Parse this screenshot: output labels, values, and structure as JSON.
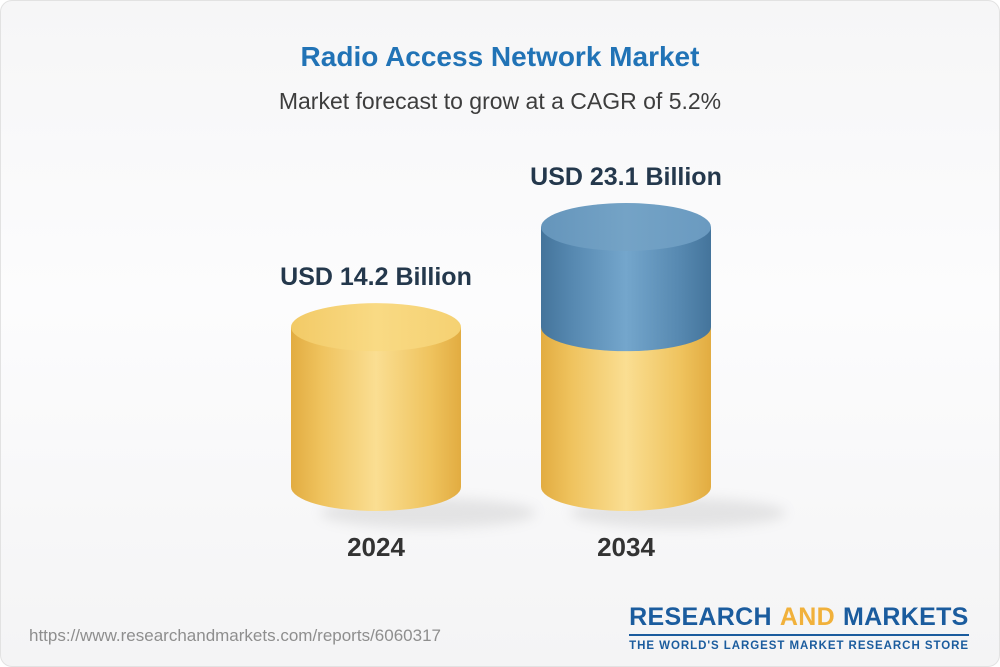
{
  "header": {
    "title": "Radio Access Network Market",
    "subtitle": "Market forecast to grow at a CAGR of 5.2%"
  },
  "chart_data": {
    "type": "bar",
    "variant": "3d-cylinder",
    "title": "Radio Access Network Market",
    "subtitle": "Market forecast to grow at a CAGR of 5.2%",
    "cagr": "5.2%",
    "unit": "USD Billion",
    "categories": [
      "2024",
      "2034"
    ],
    "values": [
      14.2,
      23.1
    ],
    "value_labels": [
      "USD 14.2 Billion",
      "USD 23.1 Billion"
    ],
    "legend": [],
    "colors": {
      "bar_2024": "#f6ce6f",
      "bar_2034_growth_segment": "#5e92bc",
      "bar_2034_base_segment": "#f6ce6f",
      "title_text": "#2173b6",
      "label_text": "#24384c"
    }
  },
  "footer": {
    "url": "https://www.researchandmarkets.com/reports/6060317",
    "logo": {
      "part1": "RESEARCH",
      "part2": "AND",
      "part3": "MARKETS",
      "tagline": "THE WORLD'S LARGEST MARKET RESEARCH STORE"
    }
  }
}
